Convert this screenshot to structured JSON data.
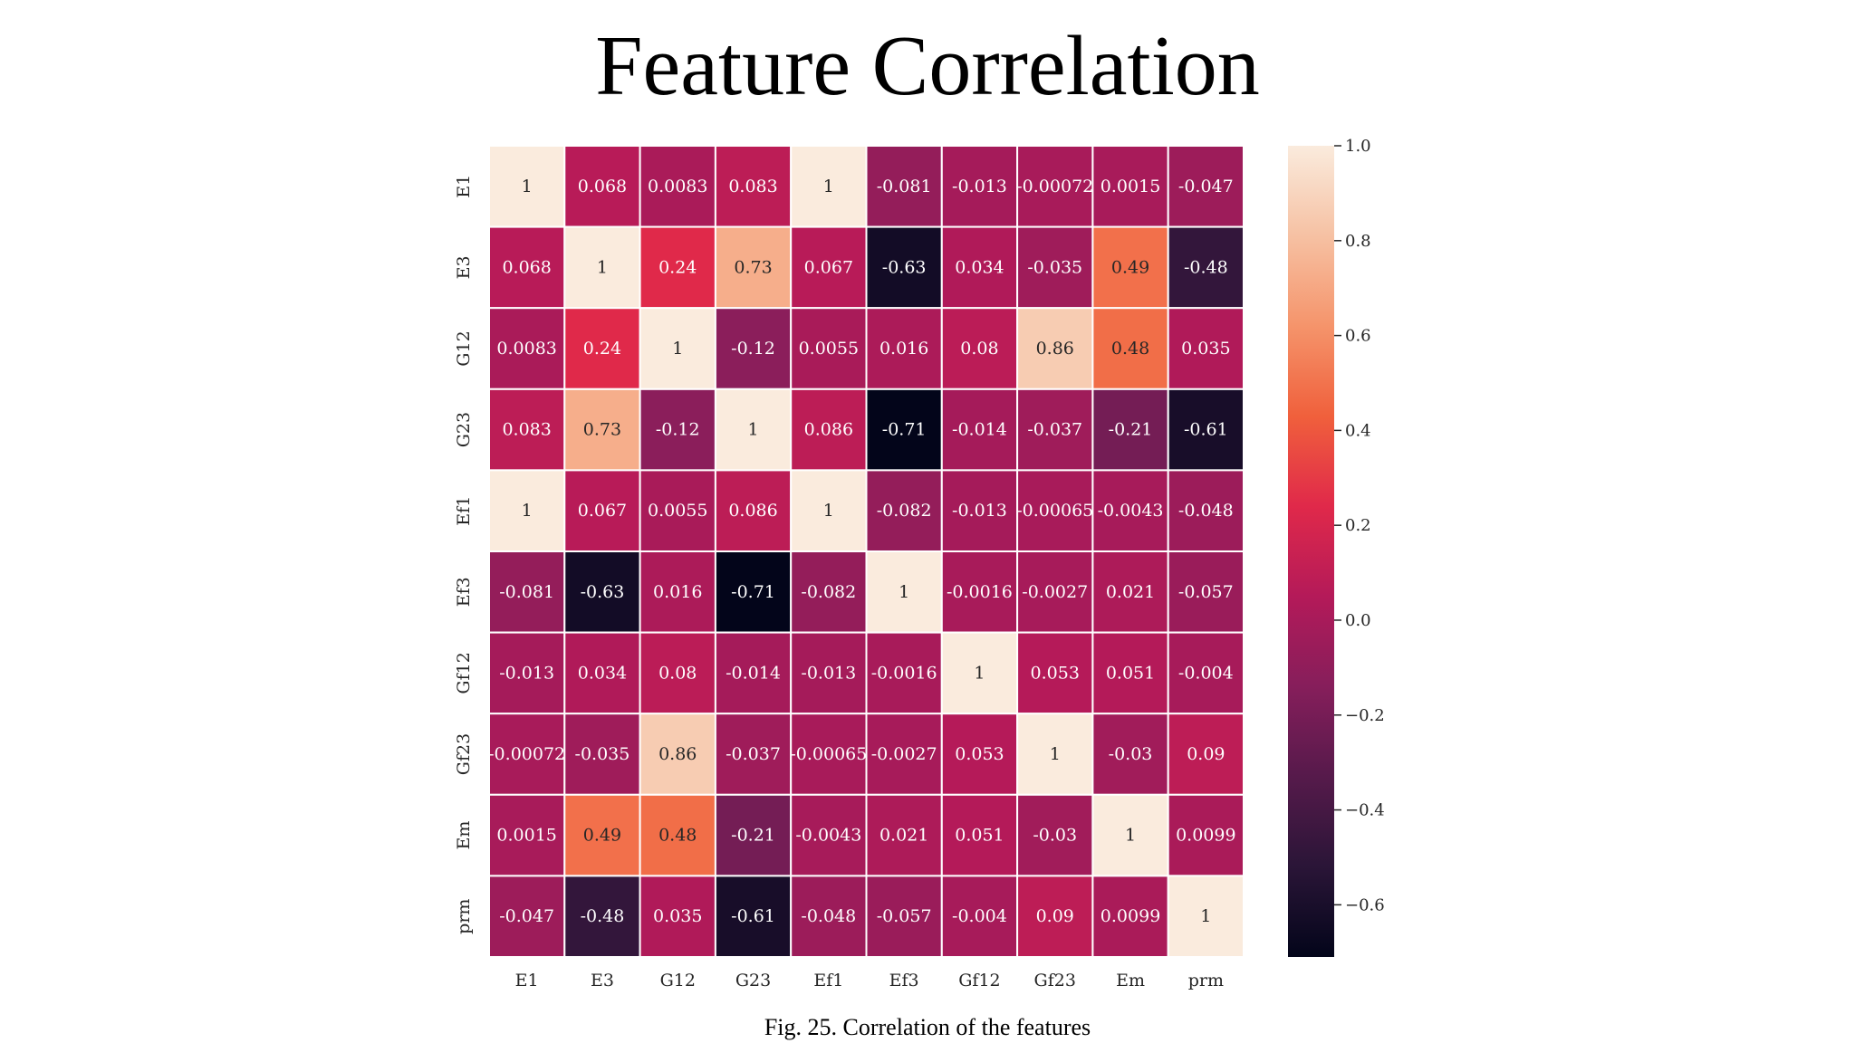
{
  "page": {
    "title": "Feature Correlation",
    "caption": "Fig. 25. Correlation of the features"
  },
  "chart_data": {
    "type": "heatmap",
    "title": "Feature Correlation",
    "x_labels": [
      "E1",
      "E3",
      "G12",
      "G23",
      "Ef1",
      "Ef3",
      "Gf12",
      "Gf23",
      "Em",
      "prm"
    ],
    "y_labels": [
      "E1",
      "E3",
      "G12",
      "G23",
      "Ef1",
      "Ef3",
      "Gf12",
      "Gf23",
      "Em",
      "prm"
    ],
    "values": [
      [
        1,
        0.068,
        0.0083,
        0.083,
        1,
        -0.081,
        -0.013,
        -0.00072,
        0.0015,
        -0.047
      ],
      [
        0.068,
        1,
        0.24,
        0.73,
        0.067,
        -0.63,
        0.034,
        -0.035,
        0.49,
        -0.48
      ],
      [
        0.0083,
        0.24,
        1,
        -0.12,
        0.0055,
        0.016,
        0.08,
        0.86,
        0.48,
        0.035
      ],
      [
        0.083,
        0.73,
        -0.12,
        1,
        0.086,
        -0.71,
        -0.014,
        -0.037,
        -0.21,
        -0.61
      ],
      [
        1,
        0.067,
        0.0055,
        0.086,
        1,
        -0.082,
        -0.013,
        -0.00065,
        -0.0043,
        -0.048
      ],
      [
        -0.081,
        -0.63,
        0.016,
        -0.71,
        -0.082,
        1,
        -0.0016,
        -0.0027,
        0.021,
        -0.057
      ],
      [
        -0.013,
        0.034,
        0.08,
        -0.014,
        -0.013,
        -0.0016,
        1,
        0.053,
        0.051,
        -0.004
      ],
      [
        -0.00072,
        -0.035,
        0.86,
        -0.037,
        -0.00065,
        -0.0027,
        0.053,
        1,
        -0.03,
        0.09
      ],
      [
        0.0015,
        0.49,
        0.48,
        -0.21,
        -0.0043,
        0.021,
        0.051,
        -0.03,
        1,
        0.0099
      ],
      [
        -0.047,
        -0.48,
        0.035,
        -0.61,
        -0.048,
        -0.057,
        -0.004,
        0.09,
        0.0099,
        1
      ]
    ],
    "value_labels": [
      [
        "1",
        "0.068",
        "0.0083",
        "0.083",
        "1",
        "-0.081",
        "-0.013",
        "-0.00072",
        "0.0015",
        "-0.047"
      ],
      [
        "0.068",
        "1",
        "0.24",
        "0.73",
        "0.067",
        "-0.63",
        "0.034",
        "-0.035",
        "0.49",
        "-0.48"
      ],
      [
        "0.0083",
        "0.24",
        "1",
        "-0.12",
        "0.0055",
        "0.016",
        "0.08",
        "0.86",
        "0.48",
        "0.035"
      ],
      [
        "0.083",
        "0.73",
        "-0.12",
        "1",
        "0.086",
        "-0.71",
        "-0.014",
        "-0.037",
        "-0.21",
        "-0.61"
      ],
      [
        "1",
        "0.067",
        "0.0055",
        "0.086",
        "1",
        "-0.082",
        "-0.013",
        "-0.00065",
        "-0.0043",
        "-0.048"
      ],
      [
        "-0.081",
        "-0.63",
        "0.016",
        "-0.71",
        "-0.082",
        "1",
        "-0.0016",
        "-0.0027",
        "0.021",
        "-0.057"
      ],
      [
        "-0.013",
        "0.034",
        "0.08",
        "-0.014",
        "-0.013",
        "-0.0016",
        "1",
        "0.053",
        "0.051",
        "-0.004"
      ],
      [
        "-0.00072",
        "-0.035",
        "0.86",
        "-0.037",
        "-0.00065",
        "-0.0027",
        "0.053",
        "1",
        "-0.03",
        "0.09"
      ],
      [
        "0.0015",
        "0.49",
        "0.48",
        "-0.21",
        "-0.0043",
        "0.021",
        "0.051",
        "-0.03",
        "1",
        "0.0099"
      ],
      [
        "-0.047",
        "-0.48",
        "0.035",
        "-0.61",
        "-0.048",
        "-0.057",
        "-0.004",
        "0.09",
        "0.0099",
        "1"
      ]
    ],
    "colorbar": {
      "vmin": -0.71,
      "vmax": 1.0,
      "ticks": [
        1.0,
        0.8,
        0.6,
        0.4,
        0.2,
        0.0,
        -0.2,
        -0.4,
        -0.6
      ],
      "tick_labels": [
        "1.0",
        "0.8",
        "0.6",
        "0.4",
        "0.2",
        "0.0",
        "−0.2",
        "−0.4",
        "−0.6"
      ],
      "colormap": "rocket",
      "colormap_stops": [
        "#03051a",
        "#2a1537",
        "#561a4b",
        "#861e5b",
        "#b41a59",
        "#e0294a",
        "#f0603c",
        "#f5946b",
        "#f6c1a3",
        "#faebdd"
      ],
      "position": "right"
    },
    "grid_line_color": "#ffffff",
    "text_color_dark": "#262626",
    "text_color_light": "#ffffff"
  }
}
